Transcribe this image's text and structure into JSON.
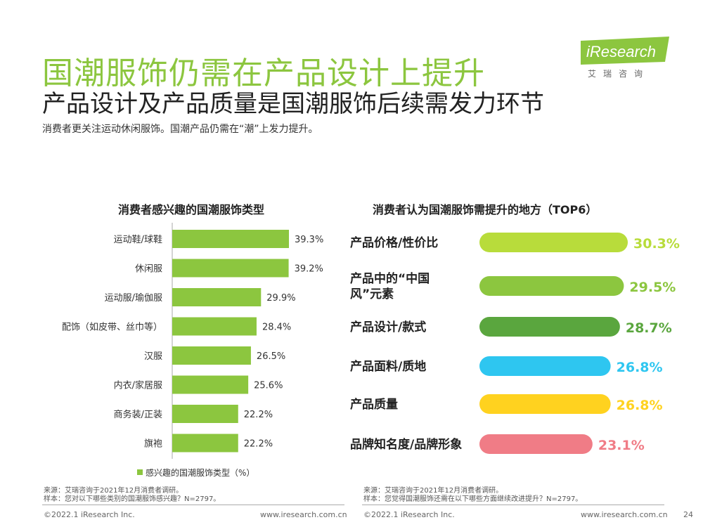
{
  "header": {
    "title": "国潮服饰仍需在产品设计上提升",
    "subtitle": "产品设计及产品质量是国潮服饰后续需发力环节",
    "description": "消费者更关注运动休闲服饰。国潮产品仍需在“潮”上发力提升。"
  },
  "logo": {
    "text": "iResearch",
    "cn": "艾瑞咨询",
    "color": "#8cc63f"
  },
  "chart_data": [
    {
      "type": "bar",
      "orientation": "horizontal",
      "title": "消费者感兴趣的国潮服饰类型",
      "categories": [
        "运动鞋/球鞋",
        "休闲服",
        "运动服/瑜伽服",
        "配饰（如皮带、丝巾等）",
        "汉服",
        "内衣/家居服",
        "商务装/正装",
        "旗袍"
      ],
      "series": [
        {
          "name": "感兴趣的国潮服饰类型（%）",
          "values": [
            39.3,
            39.2,
            29.9,
            28.4,
            26.5,
            25.6,
            22.2,
            22.2
          ],
          "labels": [
            "39.3%",
            "39.2%",
            "29.9%",
            "28.4%",
            "26.5%",
            "25.6%",
            "22.2%",
            "22.2%"
          ],
          "color": "#8cc63f"
        }
      ],
      "xlim": [
        0,
        39.3
      ],
      "legend_position": "bottom"
    },
    {
      "type": "bar",
      "orientation": "horizontal",
      "title": "消费者认为国潮服饰需提升的地方（TOP6）",
      "categories": [
        "产品价格/性价比",
        "产品中的“中国风”元素",
        "产品设计/款式",
        "产品面料/质地",
        "产品质量",
        "品牌知名度/品牌形象"
      ],
      "category_lines": [
        [
          "产品价格/性价比"
        ],
        [
          "产品中的“中国",
          "风”元素"
        ],
        [
          "产品设计/款式"
        ],
        [
          "产品面料/质地"
        ],
        [
          "产品质量"
        ],
        [
          "品牌知名度/品牌形象"
        ]
      ],
      "values": [
        30.3,
        29.5,
        28.7,
        26.8,
        26.8,
        23.1
      ],
      "labels": [
        "30.3%",
        "29.5%",
        "28.7%",
        "26.8%",
        "26.8%",
        "23.1%"
      ],
      "colors": [
        "#b8dc3b",
        "#8cc63f",
        "#5aa63e",
        "#2ec6f0",
        "#ffd21f",
        "#f07c86"
      ],
      "xlim": [
        0,
        30.3
      ]
    }
  ],
  "footer": {
    "left_source": "来源：艾瑞咨询于2021年12月消费者调研。",
    "left_sample": "样本：您对以下哪些类别的国潮服饰感兴趣？N=2797。",
    "right_source": "来源：艾瑞咨询于2021年12月消费者调研。",
    "right_sample": "样本：您觉得国潮服饰还需在以下哪些方面继续改进提升？N=2797。",
    "copyright_left": "©2022.1 iResearch Inc.",
    "url_left": "www.iresearch.com.cn",
    "copyright_right": "©2022.1 iResearch Inc.",
    "url_right": "www.iresearch.com.cn",
    "page_number": "24"
  }
}
